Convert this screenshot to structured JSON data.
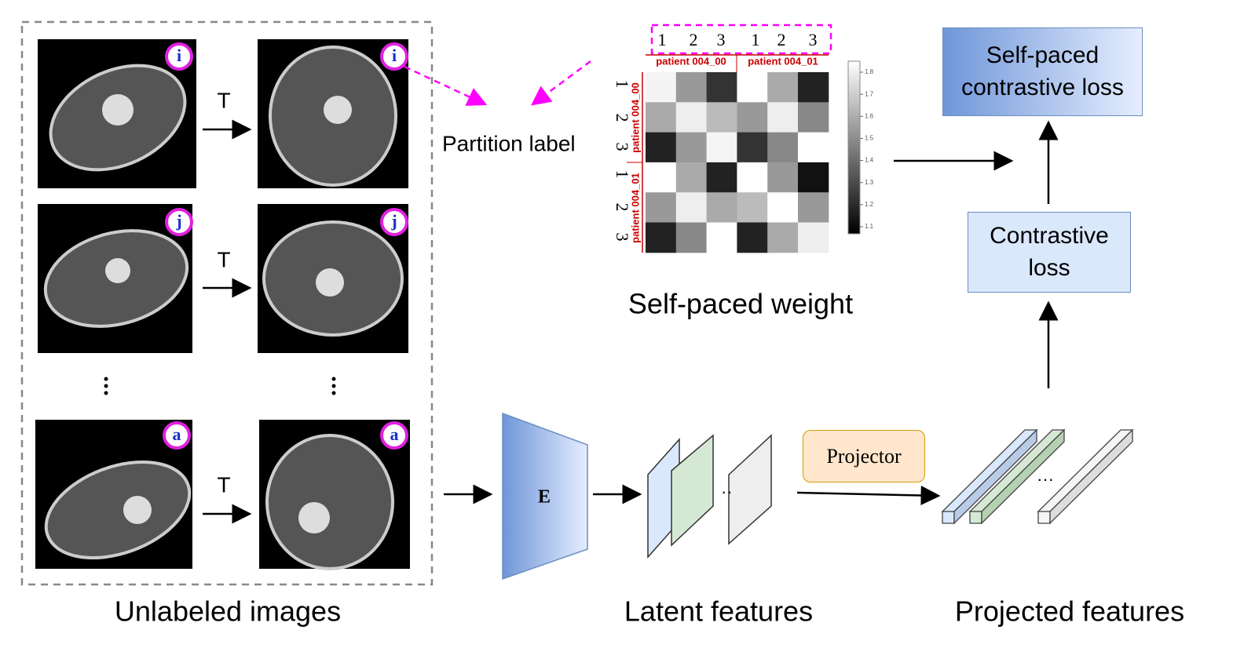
{
  "unlabeled_images": {
    "caption": "Unlabeled images",
    "transform_labels": [
      "T",
      "T",
      "T"
    ],
    "badges": [
      "i",
      "i",
      "j",
      "j",
      "a",
      "a"
    ]
  },
  "partition_label": "Partition label",
  "weight_matrix": {
    "column_indices": [
      "1",
      "2",
      "3",
      "1",
      "2",
      "3"
    ],
    "column_groups": [
      "patient 004_00",
      "patient 004_01"
    ],
    "row_indices": [
      "1",
      "2",
      "3",
      "1",
      "2",
      "3"
    ],
    "row_groups": [
      "patient 004_00",
      "patient 004_01"
    ],
    "colorbar_ticks": [
      "1.8",
      "1.7",
      "1.6",
      "1.5",
      "1.4",
      "1.3",
      "1.2",
      "1.1"
    ],
    "caption": "Self-paced weight"
  },
  "encoder": "E",
  "latent_caption": "Latent features",
  "projector": "Projector",
  "projected_caption": "Projected features",
  "contrastive_loss": "Contrastive loss",
  "self_paced_loss": "Self-paced contrastive loss"
}
